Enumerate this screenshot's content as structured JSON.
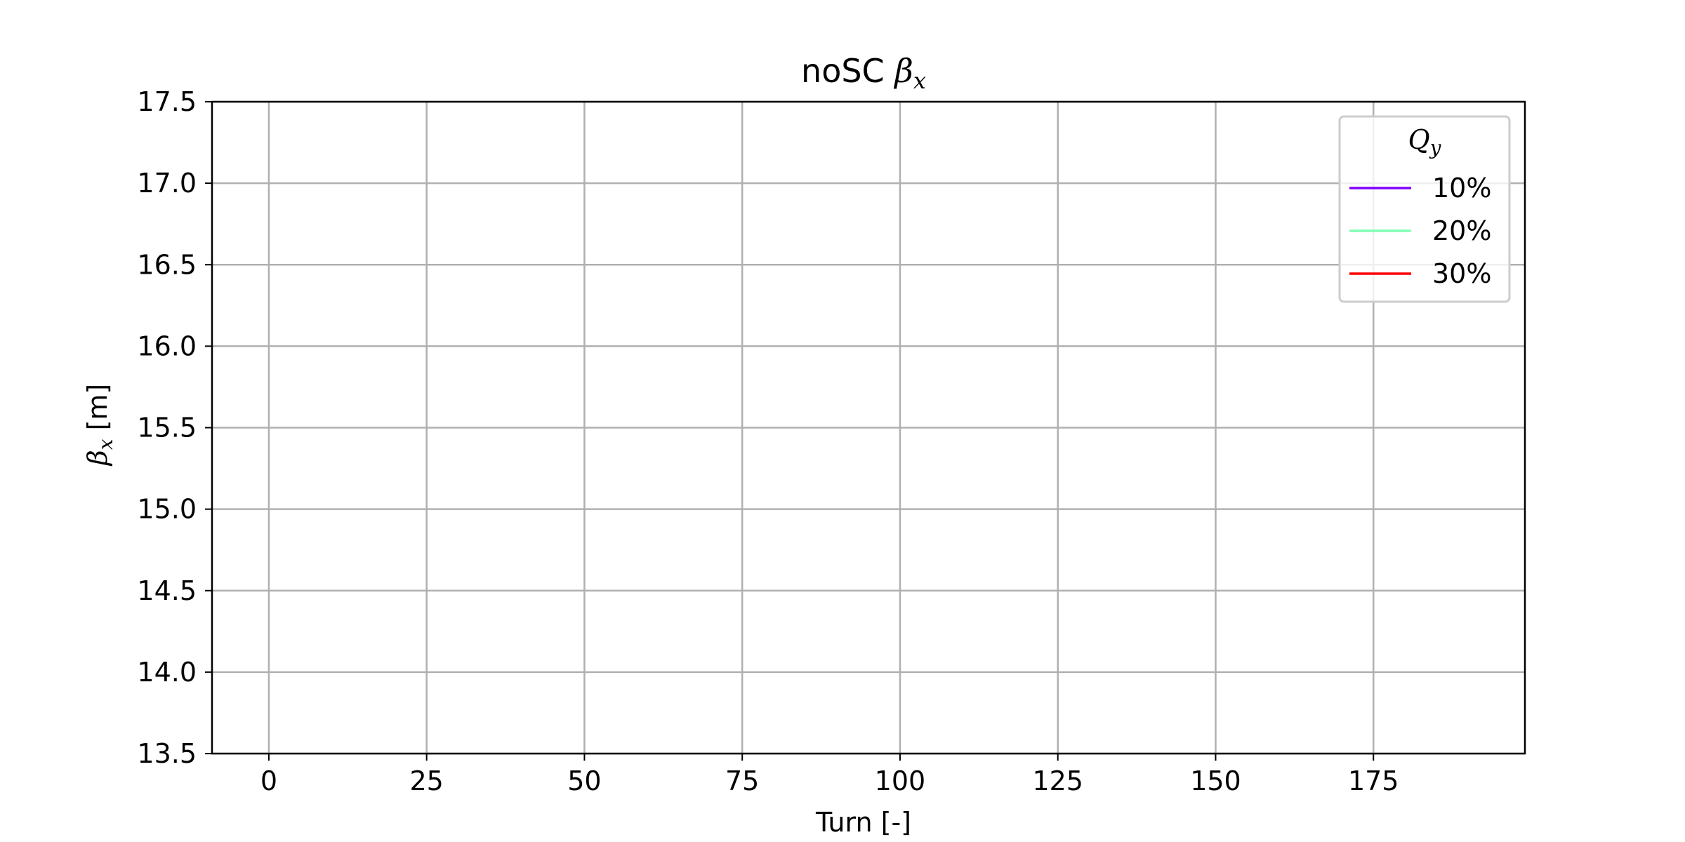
{
  "chart_data": {
    "type": "line",
    "title": {
      "prefix": "noSC ",
      "symbol": "β",
      "subscript": "x"
    },
    "xlabel": "Turn [-]",
    "ylabel": {
      "symbol": "β",
      "subscript": "x",
      "suffix": " [m]"
    },
    "xlim": [
      -9,
      199
    ],
    "ylim": [
      13.5,
      17.5
    ],
    "x_ticks": [
      0,
      25,
      50,
      75,
      100,
      125,
      150,
      175
    ],
    "x_tick_labels": [
      "0",
      "25",
      "50",
      "75",
      "100",
      "125",
      "150",
      "175"
    ],
    "y_ticks": [
      13.5,
      14.0,
      14.5,
      15.0,
      15.5,
      16.0,
      16.5,
      17.0,
      17.5
    ],
    "y_tick_labels": [
      "13.5",
      "14.0",
      "14.5",
      "15.0",
      "15.5",
      "16.0",
      "16.5",
      "17.0",
      "17.5"
    ],
    "grid": true,
    "legend": {
      "placement": "top-right",
      "title": {
        "symbol": "Q",
        "subscript": "y"
      }
    },
    "series": [
      {
        "name": "10%",
        "color": "#7f00ff",
        "x": [],
        "y": []
      },
      {
        "name": "20%",
        "color": "#80ffb4",
        "x": [],
        "y": []
      },
      {
        "name": "30%",
        "color": "#ff0000",
        "x": [],
        "y": []
      }
    ]
  }
}
